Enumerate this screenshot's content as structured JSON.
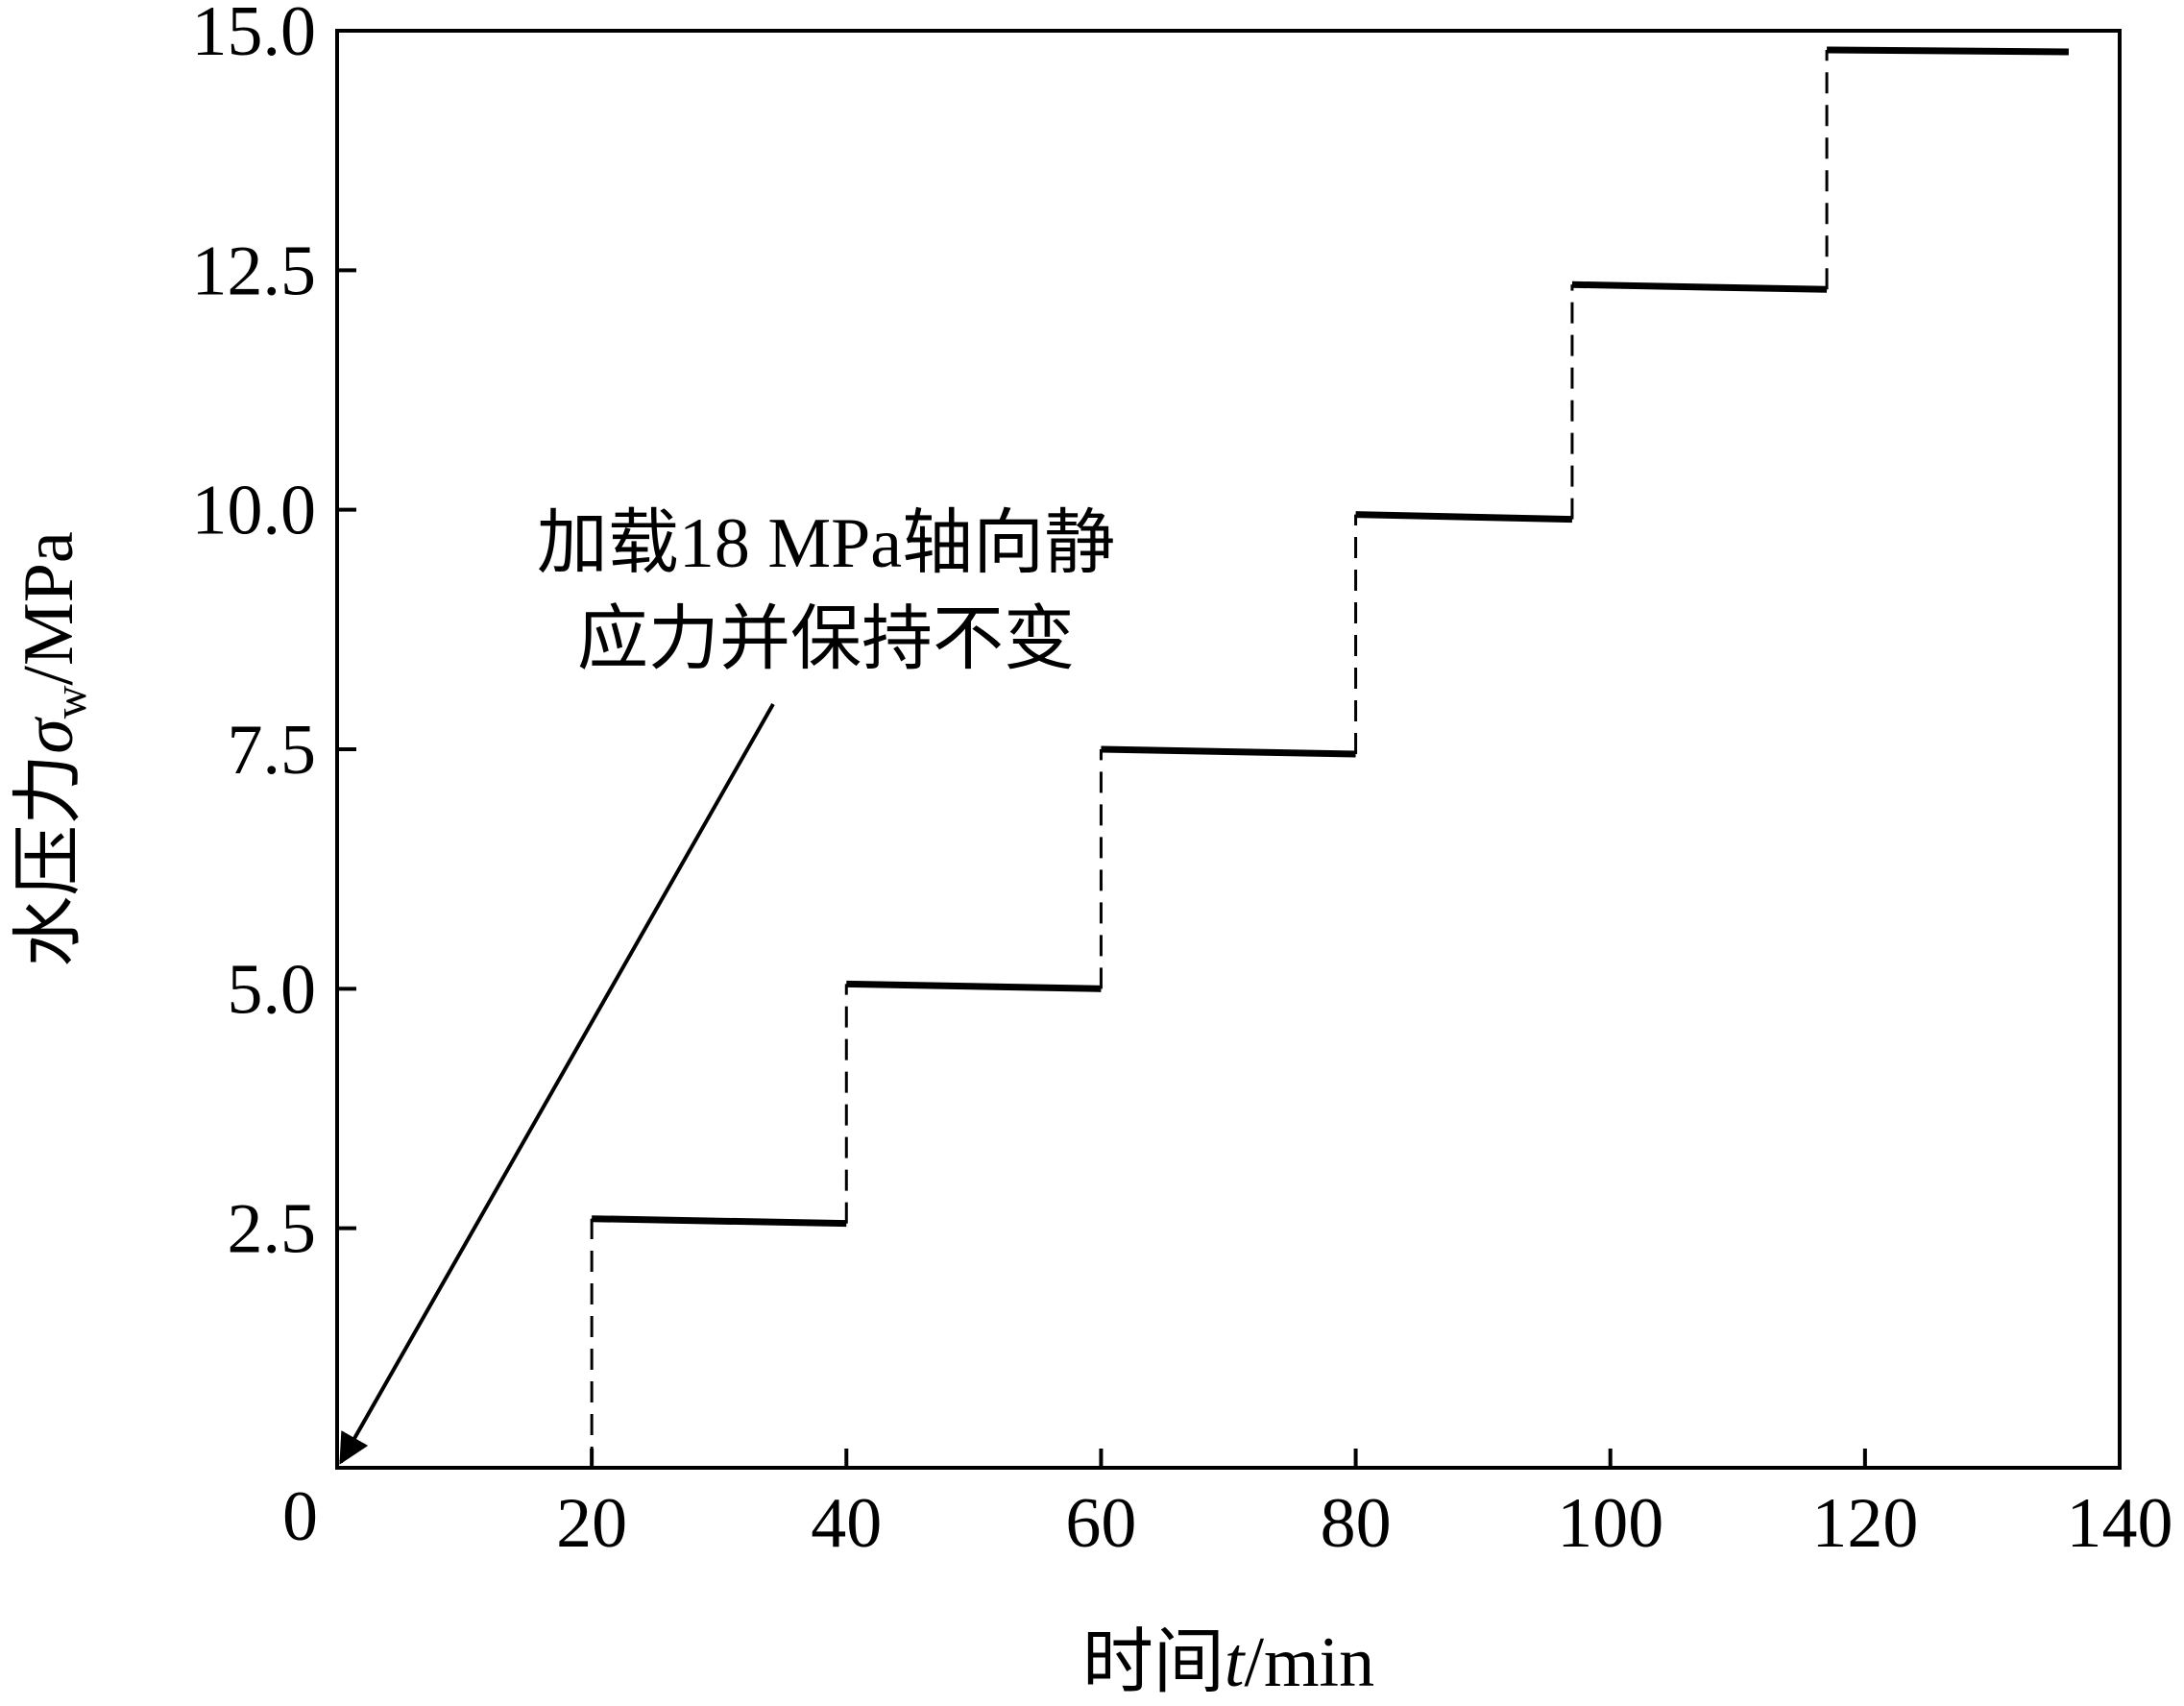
{
  "chart_data": {
    "type": "step",
    "xlabel": [
      "时间",
      "t",
      "/min"
    ],
    "ylabel": [
      "水压力",
      "σ",
      "w",
      "/MPa"
    ],
    "annotation": [
      "加载18 MPa轴向静",
      "应力并保持不变"
    ],
    "series": [
      {
        "color": "#000000",
        "x": [
          20,
          20,
          40,
          40,
          60,
          60,
          80,
          80,
          97,
          97,
          117,
          117,
          136
        ],
        "y": [
          0,
          2.6,
          2.55,
          5.05,
          5.0,
          7.5,
          7.45,
          9.95,
          9.9,
          12.35,
          12.3,
          14.8,
          14.78
        ]
      }
    ],
    "xlim": [
      0,
      140
    ],
    "ylim": [
      0,
      15
    ],
    "xticks": [
      20,
      40,
      60,
      80,
      100,
      120,
      140
    ],
    "yticks": [
      0,
      2.5,
      {
        "value": 5,
        "label": "5.0"
      },
      7.5,
      {
        "value": 10,
        "label": "10.0"
      },
      12.5,
      {
        "value": 15,
        "label": "15.0"
      }
    ]
  }
}
